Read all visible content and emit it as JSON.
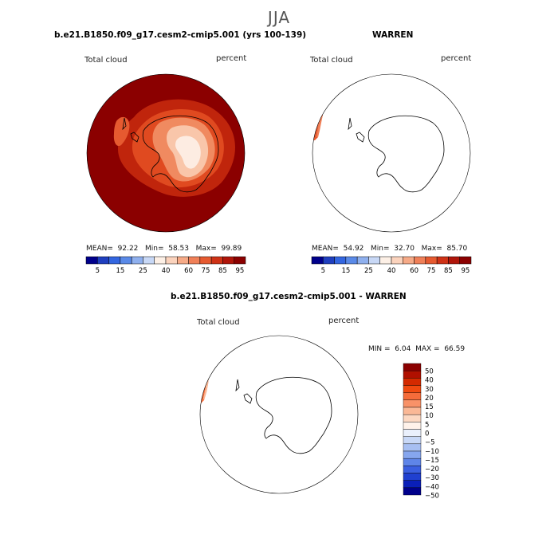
{
  "figure_title": "JJA",
  "panels": [
    {
      "title": "b.e21.B1850.f09_g17.cesm2-cmip5.001 (yrs 100-139)",
      "variable": "Total cloud",
      "units": "percent",
      "stats": {
        "mean_label": "MEAN=",
        "mean": "92.22",
        "min_label": "Min=",
        "min": "58.53",
        "max_label": "Max=",
        "max": "99.89"
      }
    },
    {
      "title": "WARREN",
      "variable": "Total cloud",
      "units": "percent",
      "stats": {
        "mean_label": "MEAN=",
        "mean": "54.92",
        "min_label": "Min=",
        "min": "32.70",
        "max_label": "Max=",
        "max": "85.70"
      }
    },
    {
      "title": "b.e21.B1850.f09_g17.cesm2-cmip5.001 - WARREN",
      "variable": "Total cloud",
      "units": "percent",
      "stats": {
        "min_label": "MIN =",
        "min": "6.04",
        "max_label": "MAX =",
        "max": "66.59"
      }
    }
  ],
  "colorbar_abs": {
    "colors": [
      "#00008b",
      "#1f3fbf",
      "#3366e0",
      "#5a8ae8",
      "#8fb0ee",
      "#c8d8f6",
      "#fdf0e6",
      "#fbd3bd",
      "#f6aa87",
      "#f08058",
      "#e65a30",
      "#cf3216",
      "#b0150a",
      "#8b0000"
    ],
    "labels": [
      "5",
      "15",
      "25",
      "40",
      "60",
      "75",
      "85",
      "95"
    ]
  },
  "colorbar_diff": {
    "colors": [
      "#8b0000",
      "#b01000",
      "#d42a00",
      "#f04a10",
      "#f56c3a",
      "#f89268",
      "#fab896",
      "#fcd8c2",
      "#fff2ea",
      "#eaf0fc",
      "#c8d8f7",
      "#a7bff2",
      "#86a6ee",
      "#5f85e8",
      "#3b5fe0",
      "#2040d0",
      "#0a1fb8",
      "#00008b"
    ],
    "labels": [
      "50",
      "40",
      "30",
      "20",
      "15",
      "10",
      "5",
      "0",
      "−5",
      "−10",
      "−15",
      "−20",
      "−30",
      "−40",
      "−50"
    ]
  }
}
